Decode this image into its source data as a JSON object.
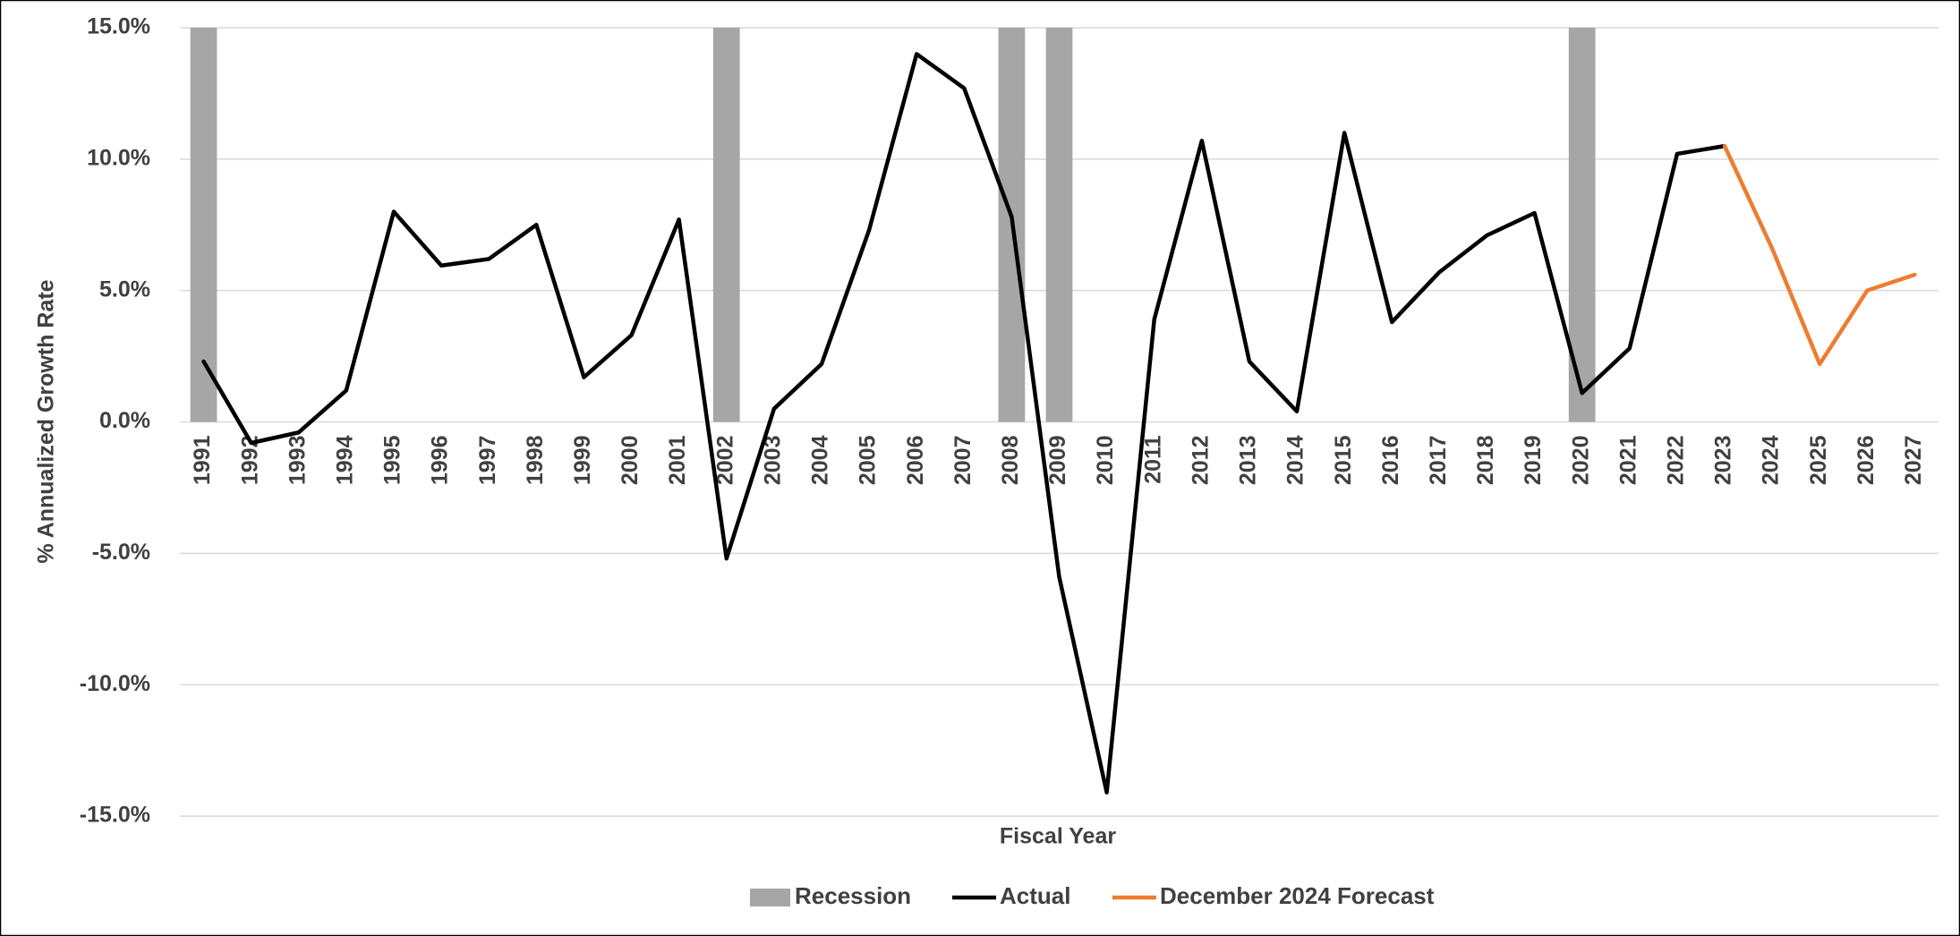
{
  "chart_data": {
    "type": "line",
    "x_label": "Fiscal Year",
    "y_label": "% Annualized Growth Rate",
    "categories": [
      "1991",
      "1992",
      "1993",
      "1994",
      "1995",
      "1996",
      "1997",
      "1998",
      "1999",
      "2000",
      "2001",
      "2002",
      "2003",
      "2004",
      "2005",
      "2006",
      "2007",
      "2008",
      "2009",
      "2010",
      "2011",
      "2012",
      "2013",
      "2014",
      "2015",
      "2016",
      "2017",
      "2018",
      "2019",
      "2020",
      "2021",
      "2022",
      "2023",
      "2024",
      "2025",
      "2026",
      "2027"
    ],
    "series": [
      {
        "name": "Recession",
        "type": "bar",
        "color": "#a6a6a6",
        "values": [
          15,
          null,
          null,
          null,
          null,
          null,
          null,
          null,
          null,
          null,
          null,
          15,
          null,
          null,
          null,
          null,
          null,
          15,
          15,
          null,
          null,
          null,
          null,
          null,
          null,
          null,
          null,
          null,
          null,
          15,
          null,
          null,
          null,
          null,
          null,
          null,
          null
        ]
      },
      {
        "name": "Actual",
        "type": "line",
        "color": "#000000",
        "values": [
          2.3,
          -0.8,
          -0.4,
          1.2,
          8.0,
          5.95,
          6.2,
          7.5,
          1.7,
          3.3,
          7.7,
          -5.2,
          0.5,
          2.2,
          7.3,
          14.0,
          12.7,
          7.8,
          -5.9,
          -14.1,
          3.9,
          10.7,
          2.3,
          0.4,
          11.0,
          3.8,
          5.7,
          7.1,
          7.95,
          1.1,
          2.8,
          10.2,
          10.5,
          null,
          null,
          null,
          null
        ]
      },
      {
        "name": "December 2024 Forecast",
        "type": "line",
        "color": "#ed7d31",
        "values": [
          null,
          null,
          null,
          null,
          null,
          null,
          null,
          null,
          null,
          null,
          null,
          null,
          null,
          null,
          null,
          null,
          null,
          null,
          null,
          null,
          null,
          null,
          null,
          null,
          null,
          null,
          null,
          null,
          null,
          null,
          null,
          null,
          10.5,
          6.6,
          2.2,
          5.0,
          5.6
        ]
      }
    ],
    "ylim": [
      -15,
      15
    ],
    "yticks": [
      {
        "value": -15,
        "label": "-15.0%"
      },
      {
        "value": -10,
        "label": "-10.0%"
      },
      {
        "value": -5,
        "label": "-5.0%"
      },
      {
        "value": 0,
        "label": "0.0%"
      },
      {
        "value": 5,
        "label": "5.0%"
      },
      {
        "value": 10,
        "label": "10.0%"
      },
      {
        "value": 15,
        "label": "15.0%"
      }
    ],
    "grid": true,
    "legend": "bottom"
  }
}
